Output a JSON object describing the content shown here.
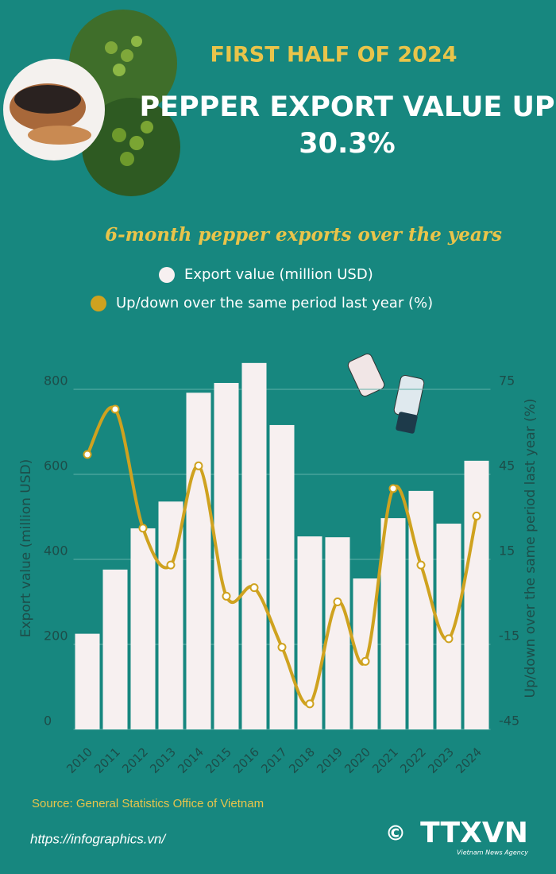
{
  "header": {
    "kicker": "FIRST HALF OF 2024",
    "title": "PEPPER EXPORT VALUE UP",
    "highlight": "30.3%"
  },
  "chart_data": {
    "type": "bar-line",
    "title": "6-month pepper exports over the years",
    "categories": [
      "2010",
      "2011",
      "2012",
      "2013",
      "2014",
      "2015",
      "2016",
      "2017",
      "2018",
      "2019",
      "2020",
      "2021",
      "2022",
      "2023",
      "2024"
    ],
    "series": [
      {
        "name": "Export value (million USD)",
        "color": "#f7f0f0",
        "values": [
          225,
          376,
          473,
          536,
          792,
          815,
          862,
          716,
          454,
          452,
          355,
          497,
          561,
          484,
          632
        ]
      },
      {
        "name": "Up/down over the same period last year (%)",
        "color": "#cfa21f",
        "axis": "y2",
        "values": [
          52,
          68,
          26,
          13,
          48,
          2,
          5,
          -16,
          -36,
          0,
          -21,
          40,
          13,
          -13,
          30.3
        ]
      }
    ],
    "ylabel": "Export value (million USD)",
    "y2label": "Up/down over the same period last year (%)",
    "ylim": [
      0,
      800
    ],
    "yticks": [
      0,
      200,
      400,
      600,
      800
    ],
    "y2lim": [
      -45,
      75
    ],
    "y2ticks": [
      -45,
      -15,
      15,
      45,
      75
    ],
    "grid": true
  },
  "footer": {
    "source": "Source: General Statistics Office of Vietnam",
    "url": "https://infographics.vn/",
    "logo": "TTXVN",
    "agency": "Vietnam News Agency",
    "copyright": "©"
  }
}
